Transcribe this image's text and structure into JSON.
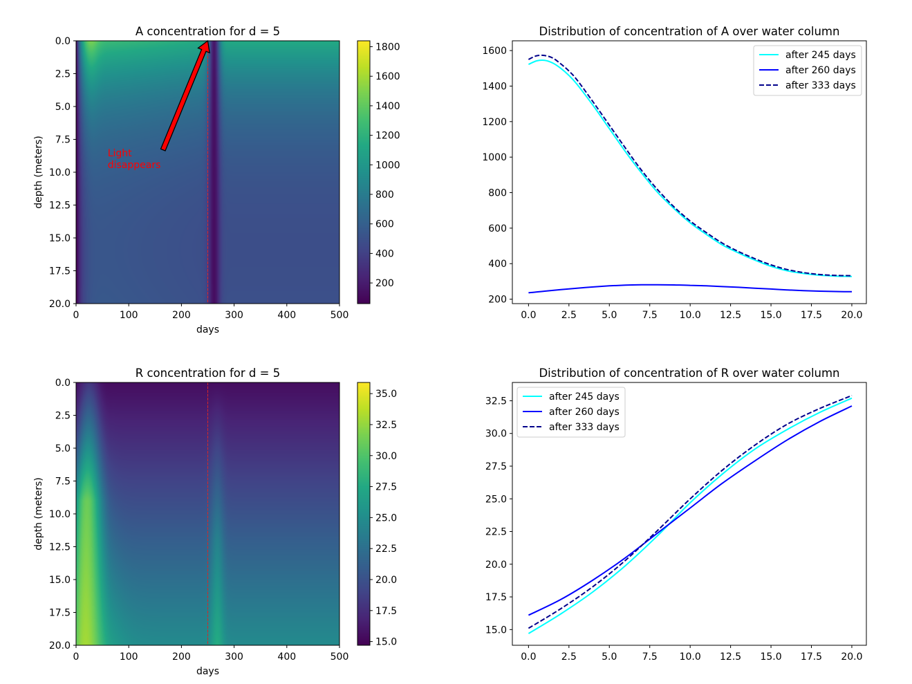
{
  "chart_data": [
    {
      "type": "heatmap",
      "title": "A concentration for d = 5",
      "xlabel": "days",
      "ylabel": "depth (meters)",
      "xlim": [
        0,
        500
      ],
      "ylim": [
        20,
        0
      ],
      "xticks": [
        "0",
        "100",
        "200",
        "300",
        "400",
        "500"
      ],
      "yticks": [
        "0.0",
        "2.5",
        "5.0",
        "7.5",
        "10.0",
        "12.5",
        "15.0",
        "17.5",
        "20.0"
      ],
      "colormap": "viridis",
      "colorbar_range": [
        60,
        1840
      ],
      "colorbar_ticks": [
        "200",
        "400",
        "600",
        "800",
        "1000",
        "1200",
        "1400",
        "1600",
        "1800"
      ],
      "marker_day": 250,
      "marker_color": "#d62728",
      "annotation": {
        "text_lines": [
          "Light",
          "disappears"
        ],
        "text_at": [
          60,
          8.8
        ],
        "arrow_from": [
          165,
          8.3
        ],
        "arrow_to": [
          250,
          0
        ],
        "color": "#ff0000"
      }
    },
    {
      "type": "line",
      "title": "Distribution of concentration of A over water column",
      "xlim": [
        -1,
        20.9
      ],
      "ylim": [
        175,
        1655
      ],
      "xticks": [
        "0.0",
        "2.5",
        "5.0",
        "7.5",
        "10.0",
        "12.5",
        "15.0",
        "17.5",
        "20.0"
      ],
      "yticks": [
        "200",
        "400",
        "600",
        "800",
        "1000",
        "1200",
        "1400",
        "1600"
      ],
      "legend_position": "top-right",
      "series": [
        {
          "name": "after 245 days",
          "color": "#00ffff",
          "dash": "solid",
          "x": [
            0,
            0.5,
            1,
            1.5,
            2,
            2.5,
            3,
            4,
            5,
            6,
            7,
            8,
            9,
            10,
            11,
            12,
            13,
            14,
            15,
            16,
            17,
            18,
            19,
            20
          ],
          "y": [
            1522,
            1542,
            1545,
            1530,
            1500,
            1460,
            1410,
            1290,
            1160,
            1030,
            910,
            800,
            710,
            630,
            565,
            505,
            460,
            420,
            385,
            360,
            345,
            335,
            330,
            328
          ]
        },
        {
          "name": "after 260 days",
          "color": "#0000ff",
          "dash": "solid",
          "x": [
            0,
            1,
            2,
            3,
            4,
            5,
            6,
            7,
            8,
            9,
            10,
            11,
            12,
            13,
            14,
            15,
            16,
            17,
            18,
            19,
            20
          ],
          "y": [
            236,
            245,
            254,
            262,
            269,
            275,
            279,
            281,
            281,
            280,
            278,
            275,
            271,
            267,
            262,
            257,
            252,
            248,
            245,
            243,
            242
          ]
        },
        {
          "name": "after 333 days",
          "color": "#00008b",
          "dash": "dashed",
          "x": [
            0,
            0.5,
            1,
            1.5,
            2,
            2.5,
            3,
            4,
            5,
            6,
            7,
            8,
            9,
            10,
            11,
            12,
            13,
            14,
            15,
            16,
            17,
            18,
            19,
            20
          ],
          "y": [
            1550,
            1571,
            1572,
            1558,
            1525,
            1485,
            1435,
            1310,
            1180,
            1050,
            925,
            815,
            720,
            640,
            575,
            515,
            468,
            428,
            393,
            367,
            350,
            339,
            334,
            332
          ]
        }
      ]
    },
    {
      "type": "heatmap",
      "title": "R concentration for d = 5",
      "xlabel": "days",
      "ylabel": "depth (meters)",
      "xlim": [
        0,
        500
      ],
      "ylim": [
        20,
        0
      ],
      "xticks": [
        "0",
        "100",
        "200",
        "300",
        "400",
        "500"
      ],
      "yticks": [
        "0.0",
        "2.5",
        "5.0",
        "7.5",
        "10.0",
        "12.5",
        "15.0",
        "17.5",
        "20.0"
      ],
      "colormap": "viridis",
      "colorbar_range": [
        14.7,
        35.9
      ],
      "colorbar_ticks": [
        "15.0",
        "17.5",
        "20.0",
        "22.5",
        "25.0",
        "27.5",
        "30.0",
        "32.5",
        "35.0"
      ],
      "marker_day": 250,
      "marker_color": "#d62728"
    },
    {
      "type": "line",
      "title": "Distribution of concentration of R over water column",
      "xlim": [
        -1,
        20.9
      ],
      "ylim": [
        13.8,
        33.9
      ],
      "xticks": [
        "0.0",
        "2.5",
        "5.0",
        "7.5",
        "10.0",
        "12.5",
        "15.0",
        "17.5",
        "20.0"
      ],
      "yticks": [
        "15.0",
        "17.5",
        "20.0",
        "22.5",
        "25.0",
        "27.5",
        "30.0",
        "32.5"
      ],
      "legend_position": "top-left",
      "series": [
        {
          "name": "after 245 days",
          "color": "#00ffff",
          "dash": "solid",
          "x": [
            0,
            2,
            4,
            6,
            8,
            10,
            12,
            14,
            16,
            18,
            20
          ],
          "y": [
            14.7,
            16.2,
            17.9,
            19.9,
            22.2,
            24.7,
            26.9,
            28.8,
            30.3,
            31.6,
            32.7
          ]
        },
        {
          "name": "after 260 days",
          "color": "#0000ff",
          "dash": "solid",
          "x": [
            0,
            2,
            4,
            6,
            8,
            10,
            12,
            14,
            16,
            18,
            20
          ],
          "y": [
            16.1,
            17.3,
            18.8,
            20.5,
            22.4,
            24.3,
            26.2,
            27.9,
            29.5,
            30.9,
            32.1
          ]
        },
        {
          "name": "after 333 days",
          "color": "#00008b",
          "dash": "dashed",
          "x": [
            0,
            2,
            4,
            6,
            8,
            10,
            12,
            14,
            16,
            18,
            20
          ],
          "y": [
            15.1,
            16.6,
            18.3,
            20.3,
            22.6,
            25.0,
            27.2,
            29.1,
            30.7,
            31.9,
            32.9
          ]
        }
      ]
    }
  ]
}
